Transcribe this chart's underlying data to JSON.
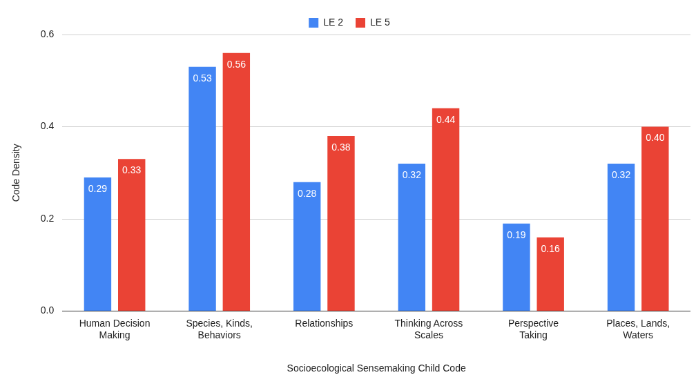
{
  "chart_data": {
    "type": "bar",
    "xlabel": "Socioecological Sensemaking Child Code",
    "ylabel": "Code Density",
    "categories": [
      "Human Decision Making",
      "Species, Kinds, Behaviors",
      "Relationships",
      "Thinking Across Scales",
      "Perspective Taking",
      "Places, Lands, Waters"
    ],
    "series": [
      {
        "name": "LE 2",
        "color": "#4285f4",
        "values": [
          0.29,
          0.53,
          0.28,
          0.32,
          0.19,
          0.32
        ],
        "value_labels": [
          "0.29",
          "0.53",
          "0.28",
          "0.32",
          "0.19",
          "0.32"
        ]
      },
      {
        "name": "LE 5",
        "color": "#ea4335",
        "values": [
          0.33,
          0.56,
          0.38,
          0.44,
          0.16,
          0.4
        ],
        "value_labels": [
          "0.33",
          "0.56",
          "0.38",
          "0.44",
          "0.16",
          "0.40"
        ]
      }
    ],
    "ylim": [
      0,
      0.6
    ],
    "yticks": [
      {
        "value": 0,
        "label": "0.0"
      },
      {
        "value": 0.2,
        "label": "0.2"
      },
      {
        "value": 0.4,
        "label": "0.4"
      },
      {
        "value": 0.6,
        "label": "0.6"
      }
    ],
    "grid": "y",
    "legend": "top"
  }
}
